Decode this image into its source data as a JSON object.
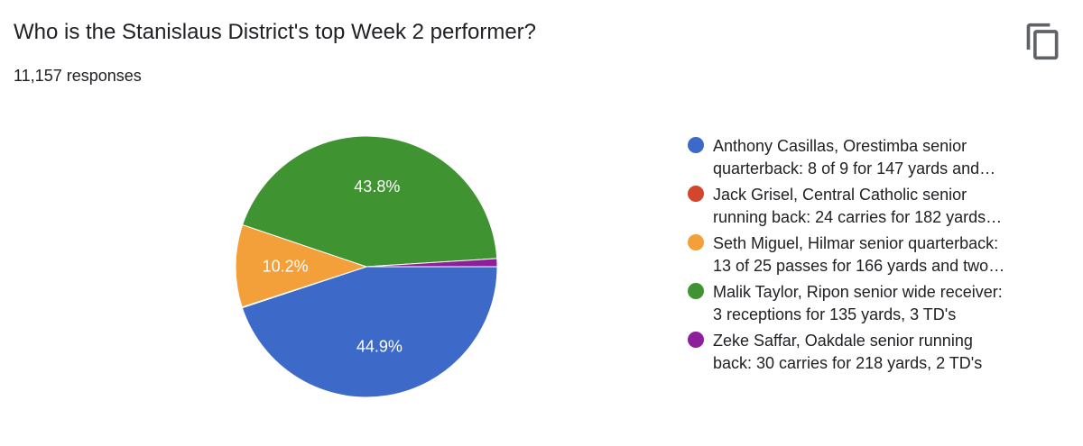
{
  "question": {
    "title": "Who is the Stanislaus District's top Week 2 performer?",
    "responses": "11,157 responses"
  },
  "toolbar": {
    "copy_icon": "copy-icon"
  },
  "chart_data": {
    "type": "pie",
    "title": "Who is the Stanislaus District's top Week 2 performer?",
    "legend_position": "right",
    "categories": [
      "Anthony Casillas, Orestimba senior\nquarterback: 8 of 9 for 147 yards and…",
      "Jack Grisel, Central Catholic senior\nrunning back: 24 carries for 182 yards…",
      "Seth Miguel, Hilmar senior quarterback:\n13 of 25 passes for 166 yards and two…",
      "Malik Taylor, Ripon senior wide receiver:\n3 receptions for 135 yards, 3 TD's",
      "Zeke Saffar, Oakdale senior running\nback: 30 carries for 218 yards, 2 TD's"
    ],
    "values": [
      44.9,
      0.1,
      10.2,
      43.8,
      1.0
    ],
    "data_labels": [
      "44.9%",
      "",
      "10.2%",
      "43.8%",
      ""
    ],
    "colors": [
      "#3d69c9",
      "#d3462c",
      "#f4a03a",
      "#3f9431",
      "#8d1f9a"
    ]
  }
}
